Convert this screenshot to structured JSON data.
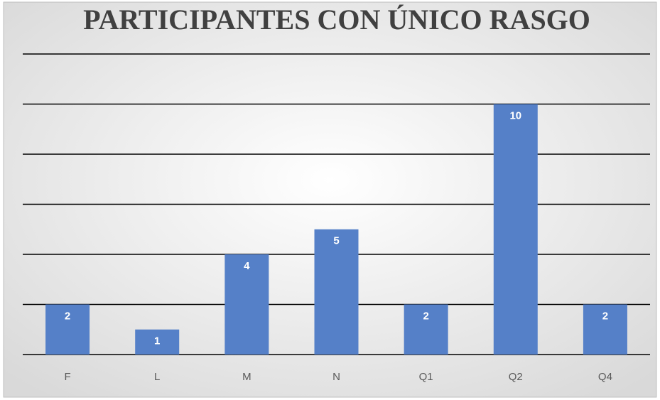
{
  "chart_data": {
    "type": "bar",
    "title": "PARTICIPANTES CON ÚNICO RASGO",
    "categories": [
      "F",
      "L",
      "M",
      "N",
      "Q1",
      "Q2",
      "Q4"
    ],
    "values": [
      2,
      1,
      4,
      5,
      2,
      10,
      2
    ],
    "color": "#5580c8",
    "ylim": [
      0,
      12
    ],
    "yticks": [
      0,
      2,
      4,
      6,
      8,
      10,
      12
    ],
    "grid": true
  }
}
